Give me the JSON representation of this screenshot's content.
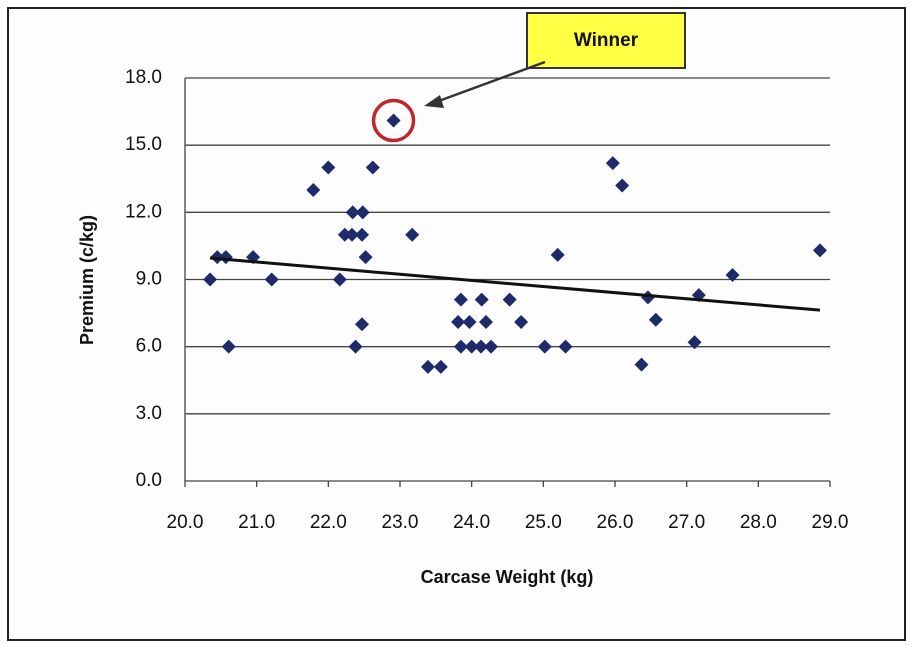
{
  "chart_data": {
    "type": "scatter",
    "xlabel": "Carcase Weight (kg)",
    "ylabel": "Premium (c/kg)",
    "annotation": "Winner",
    "annotation_point": 18,
    "color": "#1f2a6b",
    "grid": true,
    "xlim": [
      20.0,
      29.0
    ],
    "ylim": [
      0.0,
      18.0
    ],
    "xticks": [
      {
        "value": 20,
        "label": "20.0"
      },
      {
        "value": 21,
        "label": "21.0"
      },
      {
        "value": 22,
        "label": "22.0"
      },
      {
        "value": 23,
        "label": "23.0"
      },
      {
        "value": 24,
        "label": "24.0"
      },
      {
        "value": 25,
        "label": "25.0"
      },
      {
        "value": 26,
        "label": "26.0"
      },
      {
        "value": 27,
        "label": "27.0"
      },
      {
        "value": 28,
        "label": "28.0"
      },
      {
        "value": 29,
        "label": "29.0"
      }
    ],
    "yticks": [
      {
        "value": 0,
        "label": "0.0"
      },
      {
        "value": 3,
        "label": "3.0"
      },
      {
        "value": 6,
        "label": "6.0"
      },
      {
        "value": 9,
        "label": "9.0"
      },
      {
        "value": 12,
        "label": "12.0"
      },
      {
        "value": 15,
        "label": "15.0"
      },
      {
        "value": 18,
        "label": "18.0"
      }
    ],
    "x": [
      20.35,
      20.45,
      20.57,
      20.61,
      20.95,
      21.21,
      21.79,
      22.0,
      22.16,
      22.23,
      22.33,
      22.47,
      22.34,
      22.48,
      22.38,
      22.47,
      22.52,
      22.62,
      22.91,
      23.17,
      23.39,
      23.57,
      23.85,
      23.81,
      23.97,
      24.2,
      23.85,
      24.0,
      24.13,
      24.27,
      24.14,
      24.53,
      24.69,
      25.02,
      25.2,
      25.31,
      25.97,
      26.1,
      26.37,
      26.46,
      26.57,
      27.11,
      27.17,
      27.64,
      28.86
    ],
    "values": [
      9.0,
      10.0,
      10.0,
      6.0,
      10.0,
      9.0,
      13.0,
      14.0,
      9.0,
      11.0,
      11.0,
      11.0,
      12.0,
      12.0,
      6.0,
      7.0,
      10.0,
      14.0,
      16.1,
      11.0,
      5.1,
      5.1,
      8.1,
      7.1,
      7.1,
      7.1,
      6.0,
      6.0,
      6.0,
      6.0,
      8.1,
      8.1,
      7.1,
      6.0,
      10.1,
      6.0,
      14.2,
      13.2,
      5.2,
      8.2,
      7.2,
      6.2,
      8.3,
      9.2,
      10.3
    ],
    "trendline": {
      "x": [
        20.35,
        28.86
      ],
      "values": [
        9.96,
        7.63
      ],
      "color": "#111111"
    }
  }
}
